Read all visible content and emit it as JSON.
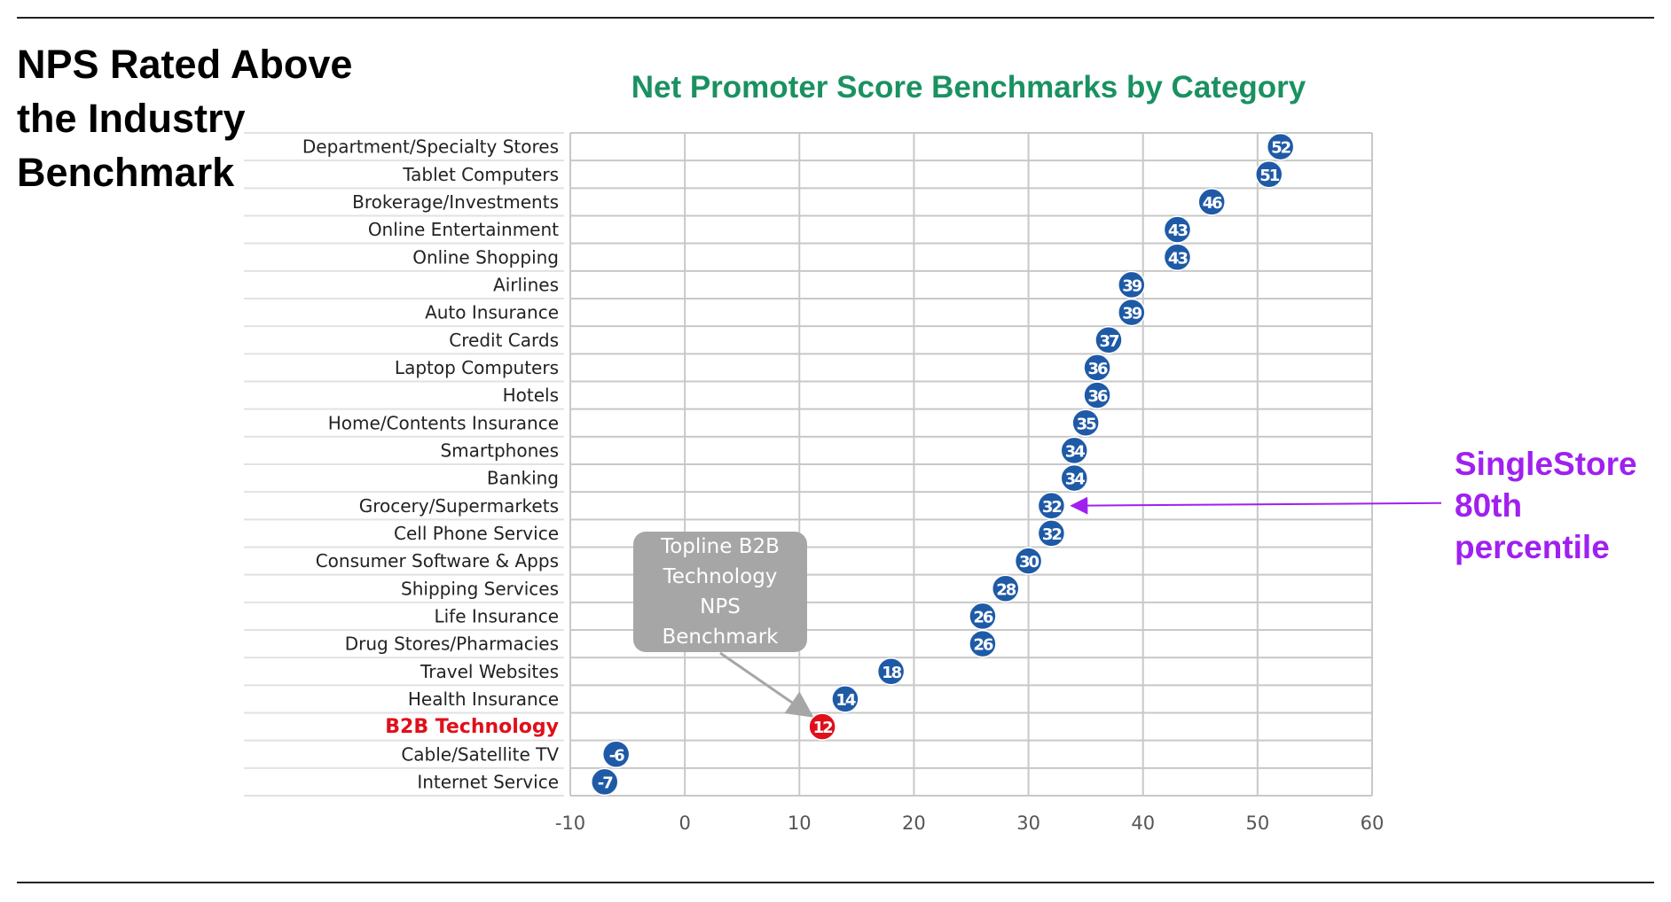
{
  "slide": {
    "title_lines": [
      "NPS Rated Above",
      "the Industry",
      "Benchmark"
    ]
  },
  "annotation": {
    "lines": [
      "SingleStore",
      "80th",
      "percentile"
    ],
    "color": "#a020f0",
    "points_to_value": 33
  },
  "callout": {
    "lines": [
      "Topline B2B",
      "Technology",
      "NPS",
      "Benchmark"
    ],
    "points_to_category": "B2B Technology"
  },
  "colors": {
    "marker": "#1f5aa6",
    "highlight": "#e0101a",
    "title": "#1a9160",
    "grid": "#c8c8c8",
    "annotation": "#a020f0",
    "callout_bg": "#a6a6a6"
  },
  "chart_data": {
    "type": "scatter",
    "title": "Net Promoter Score Benchmarks by Category",
    "xlabel": "",
    "ylabel": "",
    "xlim": [
      -10,
      60
    ],
    "x_ticks": [
      "-10",
      "0",
      "10",
      "20",
      "30",
      "40",
      "50",
      "60"
    ],
    "grid": true,
    "highlight_category": "B2B Technology",
    "categories": [
      "Department/Specialty Stores",
      "Tablet Computers",
      "Brokerage/Investments",
      "Online Entertainment",
      "Online Shopping",
      "Airlines",
      "Auto Insurance",
      "Credit Cards",
      "Laptop Computers",
      "Hotels",
      "Home/Contents Insurance",
      "Smartphones",
      "Banking",
      "Grocery/Supermarkets",
      "Cell Phone Service",
      "Consumer Software & Apps",
      "Shipping Services",
      "Life Insurance",
      "Drug Stores/Pharmacies",
      "Travel Websites",
      "Health Insurance",
      "B2B Technology",
      "Cable/Satellite TV",
      "Internet Service"
    ],
    "values": [
      52,
      51,
      46,
      43,
      43,
      39,
      39,
      37,
      36,
      36,
      35,
      34,
      34,
      32,
      32,
      30,
      28,
      26,
      26,
      18,
      14,
      12,
      -6,
      -7
    ]
  }
}
